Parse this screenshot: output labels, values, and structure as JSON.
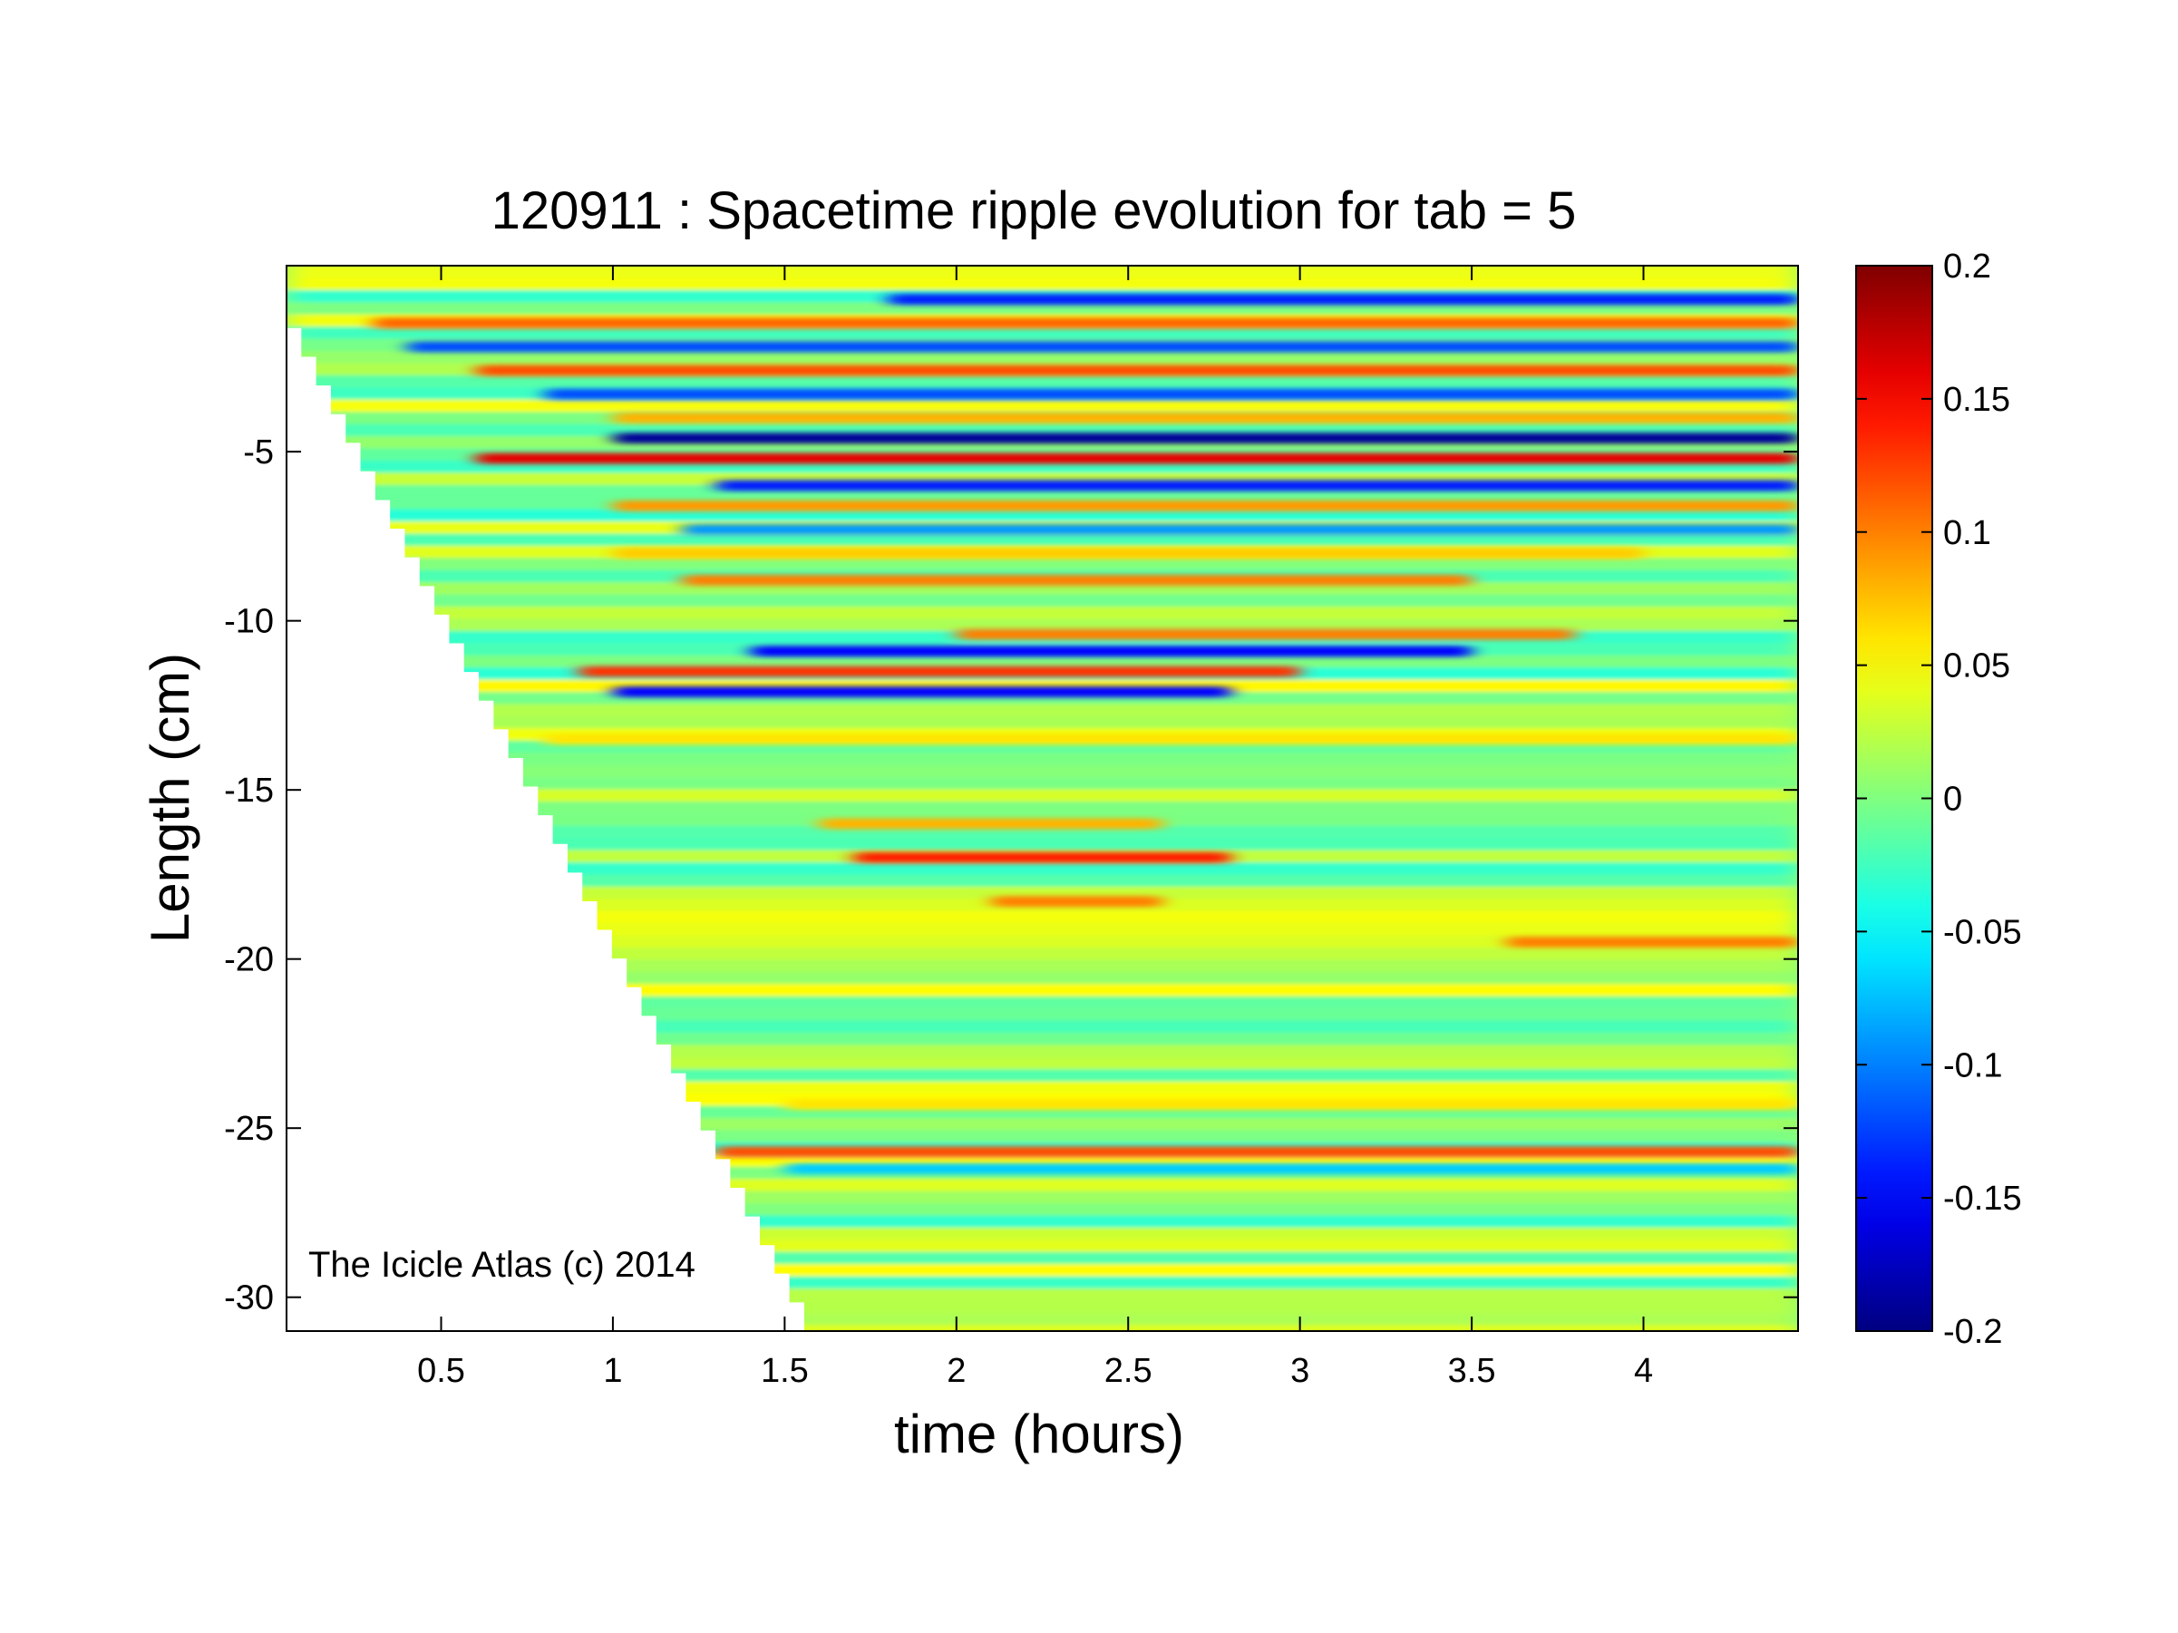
{
  "chart_data": {
    "type": "heatmap",
    "title": "120911 : Spacetime ripple evolution for tab = 5",
    "xlabel": "time (hours)",
    "ylabel": "Length (cm)",
    "xlim": [
      0.05,
      4.45
    ],
    "ylim": [
      -31,
      0.5
    ],
    "x_ticks": [
      {
        "value": 0.5,
        "label": "0.5"
      },
      {
        "value": 1,
        "label": "1"
      },
      {
        "value": 1.5,
        "label": "1.5"
      },
      {
        "value": 2,
        "label": "2"
      },
      {
        "value": 2.5,
        "label": "2.5"
      },
      {
        "value": 3,
        "label": "3"
      },
      {
        "value": 3.5,
        "label": "3.5"
      },
      {
        "value": 4,
        "label": "4"
      }
    ],
    "y_ticks": [
      {
        "value": -5,
        "label": "-5"
      },
      {
        "value": -10,
        "label": "-10"
      },
      {
        "value": -15,
        "label": "-15"
      },
      {
        "value": -20,
        "label": "-20"
      },
      {
        "value": -25,
        "label": "-25"
      },
      {
        "value": -30,
        "label": "-30"
      }
    ],
    "colormap": "jet",
    "colorbar": {
      "range": [
        -0.2,
        0.2
      ],
      "ticks": [
        {
          "value": 0.2,
          "label": "0.2"
        },
        {
          "value": 0.15,
          "label": "0.15"
        },
        {
          "value": 0.1,
          "label": "0.1"
        },
        {
          "value": 0.05,
          "label": "0.05"
        },
        {
          "value": 0,
          "label": "0"
        },
        {
          "value": -0.05,
          "label": "-0.05"
        },
        {
          "value": -0.1,
          "label": "-0.1"
        },
        {
          "value": -0.15,
          "label": "-0.15"
        },
        {
          "value": -0.2,
          "label": "-0.2"
        }
      ]
    },
    "growth_front": {
      "description_of_data": "icicle length grows linearly; no data before front",
      "start": {
        "time": 0.05,
        "length": -0.5
      },
      "end": {
        "time": 1.6,
        "length": -31
      }
    },
    "ripple_bands": [
      {
        "length": -0.5,
        "t0": 1.8,
        "t1": 4.45,
        "value": -0.14
      },
      {
        "length": -1.2,
        "t0": 0.3,
        "t1": 4.45,
        "value": 0.11
      },
      {
        "length": -1.9,
        "t0": 0.4,
        "t1": 4.45,
        "value": -0.12
      },
      {
        "length": -2.6,
        "t0": 0.6,
        "t1": 4.45,
        "value": 0.12
      },
      {
        "length": -3.3,
        "t0": 0.8,
        "t1": 4.45,
        "value": -0.12
      },
      {
        "length": -4.0,
        "t0": 1.0,
        "t1": 4.45,
        "value": 0.08
      },
      {
        "length": -4.6,
        "t0": 1.0,
        "t1": 4.45,
        "value": -0.19
      },
      {
        "length": -5.2,
        "t0": 0.6,
        "t1": 4.45,
        "value": 0.16
      },
      {
        "length": -6.0,
        "t0": 1.3,
        "t1": 4.45,
        "value": -0.14
      },
      {
        "length": -6.6,
        "t0": 1.0,
        "t1": 4.45,
        "value": 0.09
      },
      {
        "length": -7.3,
        "t0": 1.2,
        "t1": 4.45,
        "value": -0.09
      },
      {
        "length": -8.0,
        "t0": 1.0,
        "t1": 4.0,
        "value": 0.07
      },
      {
        "length": -8.8,
        "t0": 1.2,
        "t1": 3.5,
        "value": 0.1
      },
      {
        "length": -10.4,
        "t0": 2.0,
        "t1": 3.8,
        "value": 0.1
      },
      {
        "length": -10.9,
        "t0": 1.4,
        "t1": 3.5,
        "value": -0.15
      },
      {
        "length": -11.5,
        "t0": 0.9,
        "t1": 3.0,
        "value": 0.13
      },
      {
        "length": -12.1,
        "t0": 1.0,
        "t1": 2.8,
        "value": -0.15
      },
      {
        "length": -13.5,
        "t0": 0.8,
        "t1": 4.45,
        "value": 0.06
      },
      {
        "length": -16.0,
        "t0": 1.6,
        "t1": 2.6,
        "value": 0.08
      },
      {
        "length": -17.0,
        "t0": 1.7,
        "t1": 2.8,
        "value": 0.14
      },
      {
        "length": -18.3,
        "t0": 2.1,
        "t1": 2.6,
        "value": 0.1
      },
      {
        "length": -19.5,
        "t0": 3.6,
        "t1": 4.45,
        "value": 0.1
      },
      {
        "length": -24.3,
        "t0": 1.5,
        "t1": 4.45,
        "value": 0.06
      },
      {
        "length": -25.7,
        "t0": 1.3,
        "t1": 4.45,
        "value": 0.12
      },
      {
        "length": -26.2,
        "t0": 1.5,
        "t1": 4.45,
        "value": -0.07
      }
    ]
  },
  "watermark": "The Icicle Atlas (c) 2014"
}
